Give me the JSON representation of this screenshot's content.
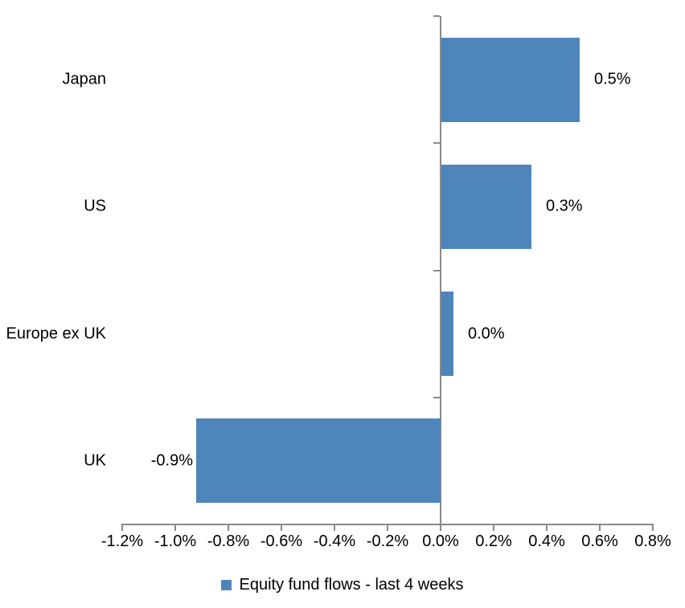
{
  "chart_data": {
    "type": "bar",
    "orientation": "horizontal",
    "title": "",
    "categories": [
      "Japan",
      "US",
      "Europe ex UK",
      "UK"
    ],
    "values": [
      0.5,
      0.3,
      0.0,
      -0.9
    ],
    "plot_values": [
      0.52,
      0.34,
      0.045,
      -0.92
    ],
    "data_labels": [
      "0.5%",
      "0.3%",
      "0.0%",
      "-0.9%"
    ],
    "xlabel": "",
    "ylabel": "",
    "xlim": [
      -1.2,
      0.8
    ],
    "x_tick_labels": [
      "-1.2%",
      "-1.0%",
      "-0.8%",
      "-0.6%",
      "-0.4%",
      "-0.2%",
      "0.0%",
      "0.2%",
      "0.4%",
      "0.6%",
      "0.8%"
    ],
    "grid": false,
    "legend_position": "bottom",
    "legend": [
      {
        "label": "Equity fund flows - last 4 weeks",
        "color": "#4E86BC"
      }
    ],
    "colors": {
      "bar": "#4E86BC",
      "axis": "#898989",
      "text": "#000000",
      "background": "#FFFFFF"
    }
  }
}
